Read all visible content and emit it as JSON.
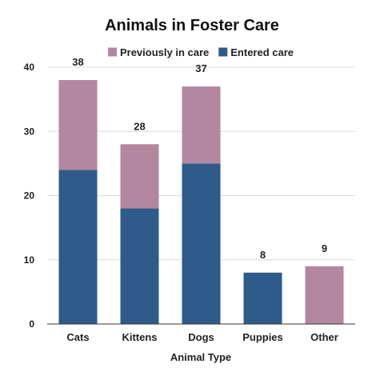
{
  "chart_data": {
    "type": "bar",
    "stacked": true,
    "title": "Animals in Foster Care",
    "xlabel": "Animal Type",
    "ylabel": "",
    "ylim": [
      0,
      40
    ],
    "yticks": [
      0,
      10,
      20,
      30,
      40
    ],
    "grid": true,
    "legend_position": "top",
    "categories": [
      "Cats",
      "Kittens",
      "Dogs",
      "Puppies",
      "Other"
    ],
    "series": [
      {
        "name": "Entered care",
        "color": "#2e5b8a",
        "values": [
          24,
          18,
          25,
          8,
          0
        ]
      },
      {
        "name": "Previously in care",
        "color": "#b2879f",
        "values": [
          14,
          10,
          12,
          0,
          9
        ]
      }
    ],
    "totals": [
      38,
      28,
      37,
      8,
      9
    ],
    "legend_order": [
      1,
      0
    ]
  }
}
